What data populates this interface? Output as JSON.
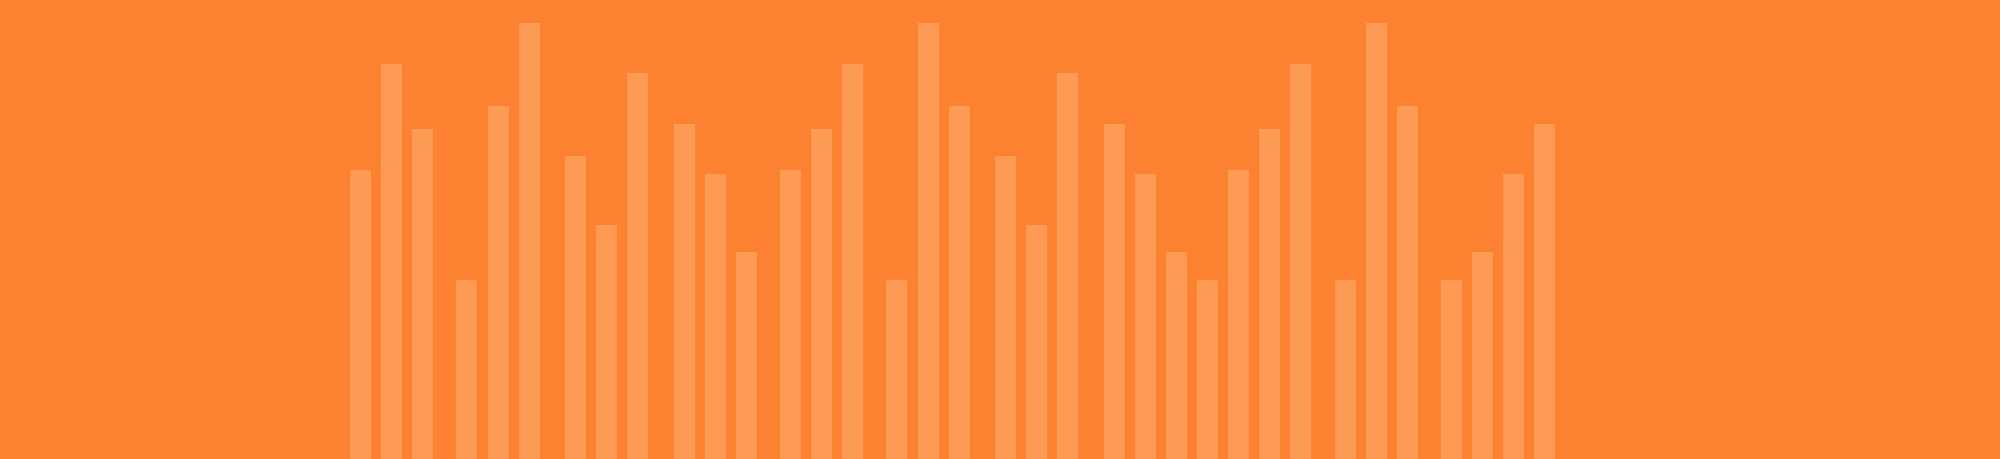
{
  "colors": {
    "background": "#FC8130",
    "bar": "#FD9A53"
  },
  "bars": {
    "levels": [
      0.63,
      0.86,
      0.72,
      0.39,
      0.77,
      0.95,
      0.66,
      0.51,
      0.84,
      0.73,
      0.62,
      0.45,
      0.63,
      0.72,
      0.86,
      0.39,
      0.95,
      0.77,
      0.66,
      0.51,
      0.84,
      0.73,
      0.62,
      0.45,
      0.39,
      0.63,
      0.72,
      0.86,
      0.39,
      0.95,
      0.77,
      0.39,
      0.45,
      0.62,
      0.73
    ]
  }
}
